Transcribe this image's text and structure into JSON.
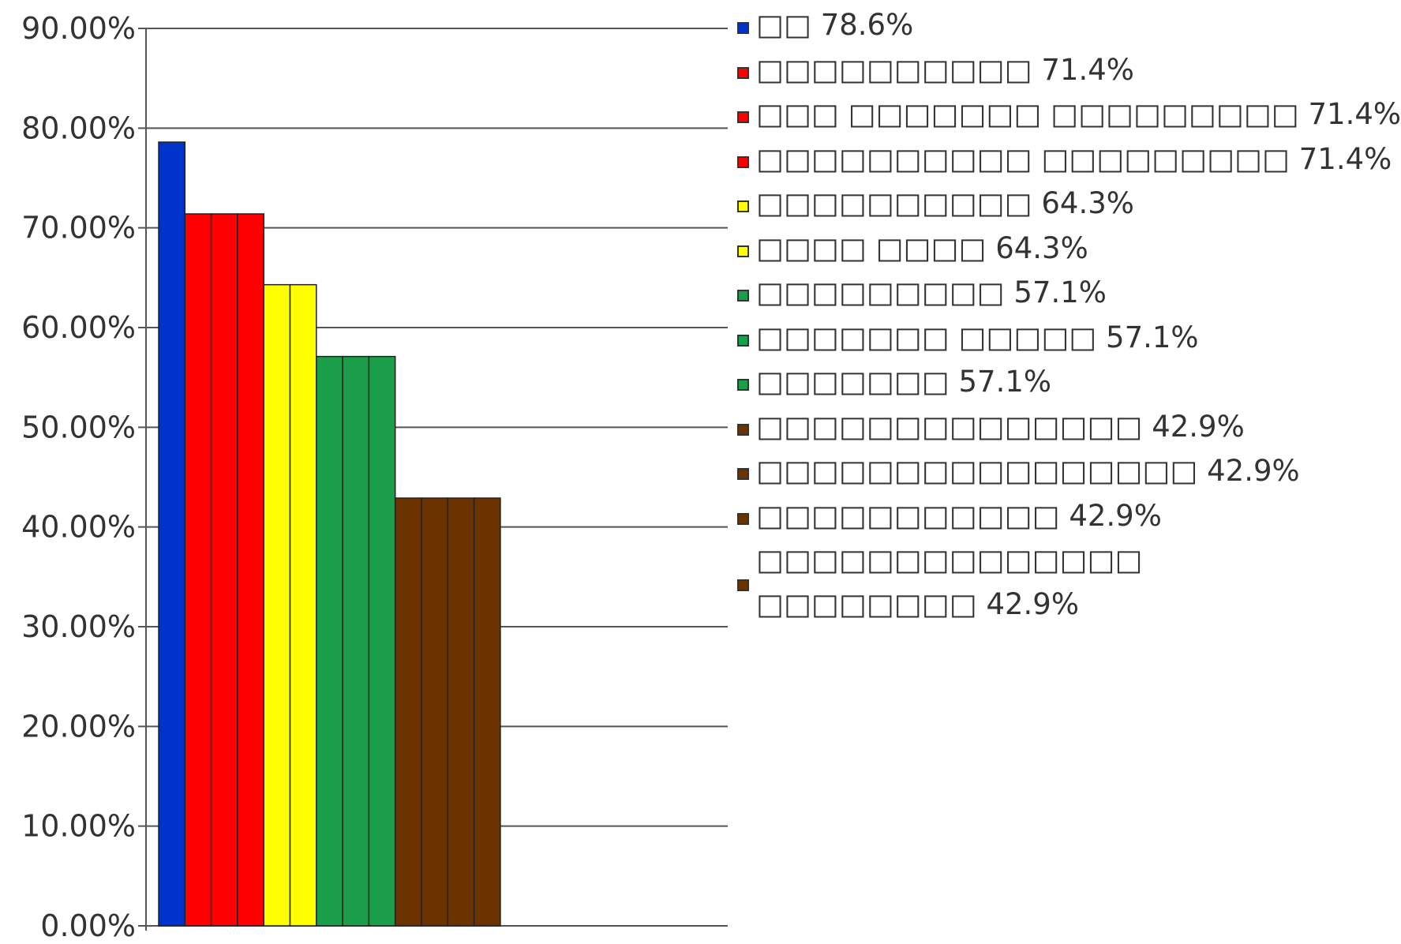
{
  "chart_data": {
    "type": "bar",
    "ylim": [
      0,
      90
    ],
    "yticks": [
      "0.00%",
      "10.00%",
      "20.00%",
      "30.00%",
      "40.00%",
      "50.00%",
      "60.00%",
      "70.00%",
      "80.00%",
      "90.00%"
    ],
    "grid": true,
    "legend_position": "right",
    "series": [
      {
        "name": "□□",
        "value": 78.6,
        "label": "78.6%",
        "color": "#0033cc"
      },
      {
        "name": "□□□□□□□□□□",
        "value": 71.4,
        "label": "71.4%",
        "color": "#ff0000"
      },
      {
        "name": "□□□ □□□□□□□ □□□□□□□□□",
        "value": 71.4,
        "label": "71.4%",
        "color": "#ff0000"
      },
      {
        "name": "□□□□□□□□□□ □□□□□□□□□",
        "value": 71.4,
        "label": "71.4%",
        "color": "#ff0000"
      },
      {
        "name": "□□□□□□□□□□",
        "value": 64.3,
        "label": "64.3%",
        "color": "#ffff00"
      },
      {
        "name": "□□□□ □□□□",
        "value": 64.3,
        "label": "64.3%",
        "color": "#ffff00"
      },
      {
        "name": "□□□□□□□□□",
        "value": 57.1,
        "label": "57.1%",
        "color": "#1a9e4a"
      },
      {
        "name": "□□□□□□□ □□□□□",
        "value": 57.1,
        "label": "57.1%",
        "color": "#1a9e4a"
      },
      {
        "name": "□□□□□□□",
        "value": 57.1,
        "label": "57.1%",
        "color": "#1a9e4a"
      },
      {
        "name": "□□□□□□□□□□□□□□",
        "value": 42.9,
        "label": "42.9%",
        "color": "#6b3300"
      },
      {
        "name": "□□□□□□□□□□□□□□□□",
        "value": 42.9,
        "label": "42.9%",
        "color": "#6b3300"
      },
      {
        "name": "□□□□□□□□□□□",
        "value": 42.9,
        "label": "42.9%",
        "color": "#6b3300"
      },
      {
        "name": "□□□□□□□□□□□□□□ □□□□□□□□",
        "value": 42.9,
        "label": "42.9%",
        "color": "#6b3300"
      }
    ]
  }
}
